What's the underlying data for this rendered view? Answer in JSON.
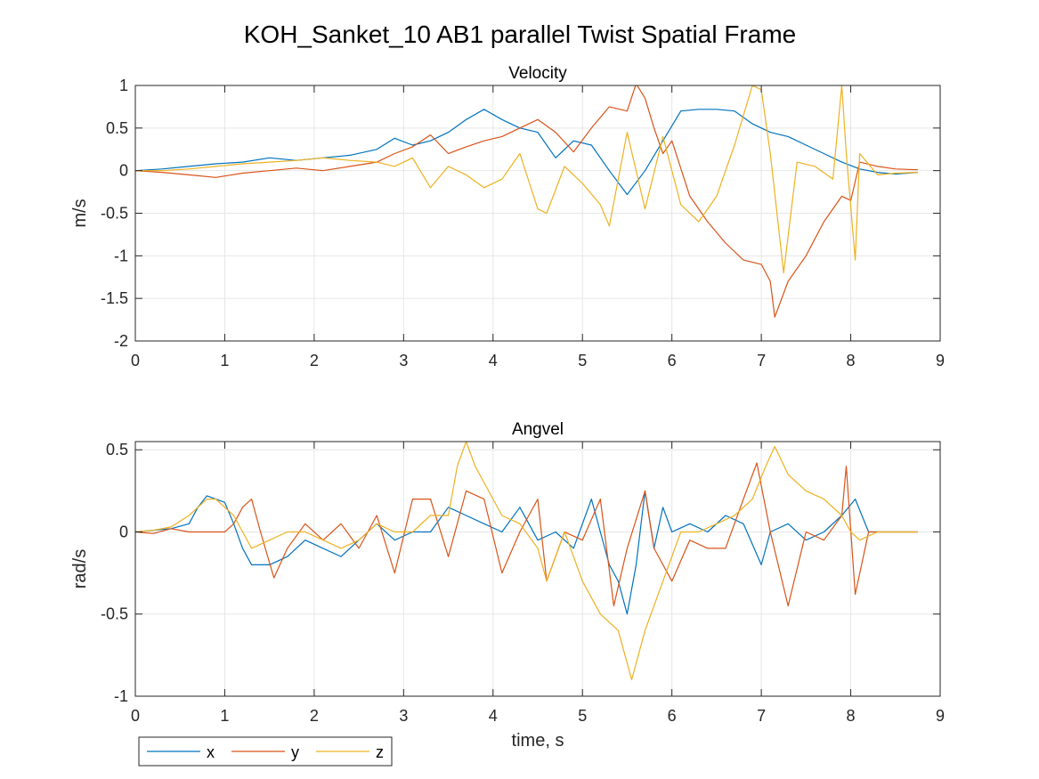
{
  "figure": {
    "title": "KOH_Sanket_10 AB1 parallel Twist Spatial Frame"
  },
  "colors": {
    "x": "#0072BD",
    "y": "#D95319",
    "z": "#EDB120"
  },
  "legend": {
    "placement": "bottom-left",
    "orientation": "horizontal",
    "entries": [
      "x",
      "y",
      "z"
    ]
  },
  "chart_data": [
    {
      "type": "line",
      "title": "Velocity",
      "xlabel": "",
      "ylabel": "m/s",
      "xlim": [
        0,
        9
      ],
      "ylim": [
        -2,
        1
      ],
      "grid": true,
      "xticks": [
        "0",
        "1",
        "2",
        "3",
        "4",
        "5",
        "6",
        "7",
        "8",
        "9"
      ],
      "yticks": [
        "1",
        "0.5",
        "0",
        "-0.5",
        "-1",
        "-1.5",
        "-2"
      ],
      "ytick_values": [
        1,
        0.5,
        0,
        -0.5,
        -1,
        -1.5,
        -2
      ],
      "series": [
        {
          "name": "x",
          "color": "#0072BD",
          "x": [
            0,
            0.3,
            0.6,
            0.9,
            1.2,
            1.5,
            1.8,
            2.1,
            2.4,
            2.7,
            2.9,
            3.1,
            3.3,
            3.5,
            3.7,
            3.9,
            4.1,
            4.3,
            4.5,
            4.7,
            4.9,
            5.1,
            5.3,
            5.5,
            5.7,
            5.9,
            6.1,
            6.3,
            6.5,
            6.7,
            6.9,
            7.1,
            7.3,
            7.5,
            7.7,
            7.9,
            8.1,
            8.3,
            8.5,
            8.75
          ],
          "y": [
            0,
            0.02,
            0.05,
            0.08,
            0.1,
            0.15,
            0.12,
            0.15,
            0.18,
            0.25,
            0.38,
            0.3,
            0.35,
            0.45,
            0.6,
            0.72,
            0.6,
            0.5,
            0.45,
            0.15,
            0.35,
            0.3,
            0.0,
            -0.28,
            0.0,
            0.35,
            0.7,
            0.72,
            0.72,
            0.7,
            0.55,
            0.45,
            0.4,
            0.3,
            0.2,
            0.1,
            0.02,
            -0.02,
            -0.04,
            -0.02
          ]
        },
        {
          "name": "y",
          "color": "#D95319",
          "x": [
            0,
            0.3,
            0.6,
            0.9,
            1.2,
            1.5,
            1.8,
            2.1,
            2.4,
            2.7,
            2.9,
            3.1,
            3.3,
            3.5,
            3.7,
            3.9,
            4.1,
            4.3,
            4.5,
            4.7,
            4.9,
            5.1,
            5.3,
            5.5,
            5.6,
            5.7,
            5.8,
            5.9,
            6.0,
            6.2,
            6.4,
            6.6,
            6.8,
            7.0,
            7.1,
            7.15,
            7.3,
            7.5,
            7.7,
            7.9,
            8.0,
            8.1,
            8.3,
            8.5,
            8.75
          ],
          "y": [
            0,
            -0.02,
            -0.05,
            -0.08,
            -0.03,
            0.0,
            0.03,
            0.0,
            0.05,
            0.1,
            0.2,
            0.28,
            0.42,
            0.2,
            0.28,
            0.35,
            0.4,
            0.5,
            0.6,
            0.45,
            0.22,
            0.5,
            0.75,
            0.7,
            1.02,
            0.85,
            0.5,
            0.2,
            0.35,
            -0.3,
            -0.6,
            -0.85,
            -1.05,
            -1.1,
            -1.3,
            -1.72,
            -1.3,
            -1.0,
            -0.6,
            -0.3,
            -0.35,
            0.1,
            0.05,
            0.02,
            0.01
          ]
        },
        {
          "name": "z",
          "color": "#EDB120",
          "x": [
            0,
            0.3,
            0.6,
            0.9,
            1.2,
            1.5,
            1.8,
            2.1,
            2.4,
            2.7,
            2.9,
            3.1,
            3.3,
            3.5,
            3.7,
            3.9,
            4.1,
            4.3,
            4.5,
            4.6,
            4.8,
            5.0,
            5.2,
            5.3,
            5.5,
            5.7,
            5.9,
            6.1,
            6.3,
            6.5,
            6.7,
            6.9,
            7.0,
            7.1,
            7.25,
            7.4,
            7.6,
            7.8,
            7.9,
            7.95,
            8.05,
            8.1,
            8.3,
            8.5,
            8.75
          ],
          "y": [
            0,
            0.0,
            0.02,
            0.05,
            0.08,
            0.1,
            0.12,
            0.15,
            0.12,
            0.1,
            0.05,
            0.15,
            -0.2,
            0.05,
            -0.05,
            -0.2,
            -0.1,
            0.2,
            -0.45,
            -0.5,
            0.05,
            -0.15,
            -0.4,
            -0.65,
            0.45,
            -0.45,
            0.4,
            -0.4,
            -0.6,
            -0.3,
            0.3,
            1.0,
            0.95,
            0.2,
            -1.2,
            0.1,
            0.05,
            -0.1,
            1.0,
            0.2,
            -1.05,
            0.2,
            -0.05,
            -0.03,
            -0.02
          ]
        }
      ]
    },
    {
      "type": "line",
      "title": "Angvel",
      "xlabel": "time, s",
      "ylabel": "rad/s",
      "xlim": [
        0,
        9
      ],
      "ylim": [
        -1,
        0.55
      ],
      "grid": true,
      "xticks": [
        "0",
        "1",
        "2",
        "3",
        "4",
        "5",
        "6",
        "7",
        "8",
        "9"
      ],
      "yticks": [
        "0.5",
        "0",
        "-0.5",
        "-1"
      ],
      "ytick_values": [
        0.5,
        0,
        -0.5,
        -1
      ],
      "series": [
        {
          "name": "x",
          "color": "#0072BD",
          "x": [
            0,
            0.2,
            0.4,
            0.6,
            0.7,
            0.8,
            0.9,
            1.0,
            1.1,
            1.2,
            1.3,
            1.5,
            1.7,
            1.9,
            2.1,
            2.3,
            2.5,
            2.7,
            2.9,
            3.1,
            3.3,
            3.5,
            3.7,
            3.9,
            4.1,
            4.3,
            4.5,
            4.7,
            4.9,
            5.1,
            5.2,
            5.3,
            5.4,
            5.5,
            5.6,
            5.7,
            5.8,
            5.9,
            6.0,
            6.2,
            6.4,
            6.6,
            6.8,
            7.0,
            7.1,
            7.3,
            7.5,
            7.7,
            7.9,
            8.05,
            8.2,
            8.4,
            8.6,
            8.75
          ],
          "y": [
            0,
            0.01,
            0.02,
            0.05,
            0.15,
            0.22,
            0.2,
            0.18,
            0.05,
            -0.1,
            -0.2,
            -0.2,
            -0.15,
            -0.05,
            -0.1,
            -0.15,
            -0.05,
            0.05,
            -0.05,
            0.0,
            0.0,
            0.15,
            0.1,
            0.05,
            0.0,
            0.15,
            -0.05,
            0.0,
            -0.1,
            0.2,
            0.0,
            -0.2,
            -0.3,
            -0.5,
            -0.2,
            0.25,
            -0.1,
            0.15,
            0.0,
            0.05,
            0.0,
            0.1,
            0.05,
            -0.2,
            0.0,
            0.05,
            -0.05,
            0.0,
            0.1,
            0.2,
            0.0,
            0.0,
            0.0,
            0.0
          ]
        },
        {
          "name": "y",
          "color": "#D95319",
          "x": [
            0,
            0.2,
            0.4,
            0.6,
            0.8,
            1.0,
            1.1,
            1.2,
            1.3,
            1.4,
            1.55,
            1.7,
            1.9,
            2.1,
            2.3,
            2.5,
            2.7,
            2.9,
            3.1,
            3.3,
            3.5,
            3.7,
            3.9,
            4.1,
            4.3,
            4.5,
            4.6,
            4.8,
            5.0,
            5.2,
            5.35,
            5.5,
            5.7,
            5.8,
            6.0,
            6.2,
            6.4,
            6.6,
            6.8,
            6.95,
            7.1,
            7.3,
            7.5,
            7.7,
            7.9,
            7.95,
            8.05,
            8.2,
            8.4,
            8.6,
            8.75
          ],
          "y": [
            0,
            -0.01,
            0.02,
            0.0,
            0.0,
            0.0,
            0.05,
            0.15,
            0.2,
            0.0,
            -0.28,
            -0.1,
            0.05,
            -0.05,
            0.05,
            -0.1,
            0.1,
            -0.25,
            0.2,
            0.2,
            -0.15,
            0.25,
            0.2,
            -0.25,
            0.0,
            0.2,
            -0.3,
            0.0,
            -0.05,
            0.2,
            -0.45,
            -0.1,
            0.25,
            -0.1,
            -0.3,
            -0.05,
            -0.1,
            -0.1,
            0.2,
            0.42,
            0.0,
            -0.45,
            0.0,
            -0.05,
            0.1,
            0.4,
            -0.38,
            0.0,
            0.0,
            0.0,
            0.0
          ]
        },
        {
          "name": "z",
          "color": "#EDB120",
          "x": [
            0,
            0.2,
            0.4,
            0.6,
            0.8,
            0.9,
            1.1,
            1.3,
            1.5,
            1.7,
            1.9,
            2.1,
            2.3,
            2.5,
            2.7,
            2.9,
            3.1,
            3.3,
            3.5,
            3.6,
            3.7,
            3.8,
            3.9,
            4.1,
            4.3,
            4.5,
            4.6,
            4.8,
            5.0,
            5.2,
            5.4,
            5.55,
            5.7,
            5.9,
            6.1,
            6.3,
            6.5,
            6.7,
            6.9,
            7.05,
            7.15,
            7.3,
            7.5,
            7.7,
            7.9,
            8.0,
            8.1,
            8.3,
            8.5,
            8.75
          ],
          "y": [
            0,
            0.01,
            0.03,
            0.1,
            0.2,
            0.2,
            0.1,
            -0.1,
            -0.05,
            0.0,
            0.0,
            -0.05,
            -0.1,
            -0.05,
            0.05,
            0.0,
            0.0,
            0.1,
            0.1,
            0.4,
            0.55,
            0.4,
            0.3,
            0.1,
            0.05,
            -0.1,
            -0.3,
            0.0,
            -0.3,
            -0.5,
            -0.6,
            -0.9,
            -0.6,
            -0.3,
            0.0,
            0.0,
            0.05,
            0.1,
            0.2,
            0.4,
            0.52,
            0.35,
            0.25,
            0.2,
            0.1,
            0.0,
            -0.05,
            0.0,
            0.0,
            0.0
          ]
        }
      ]
    }
  ]
}
